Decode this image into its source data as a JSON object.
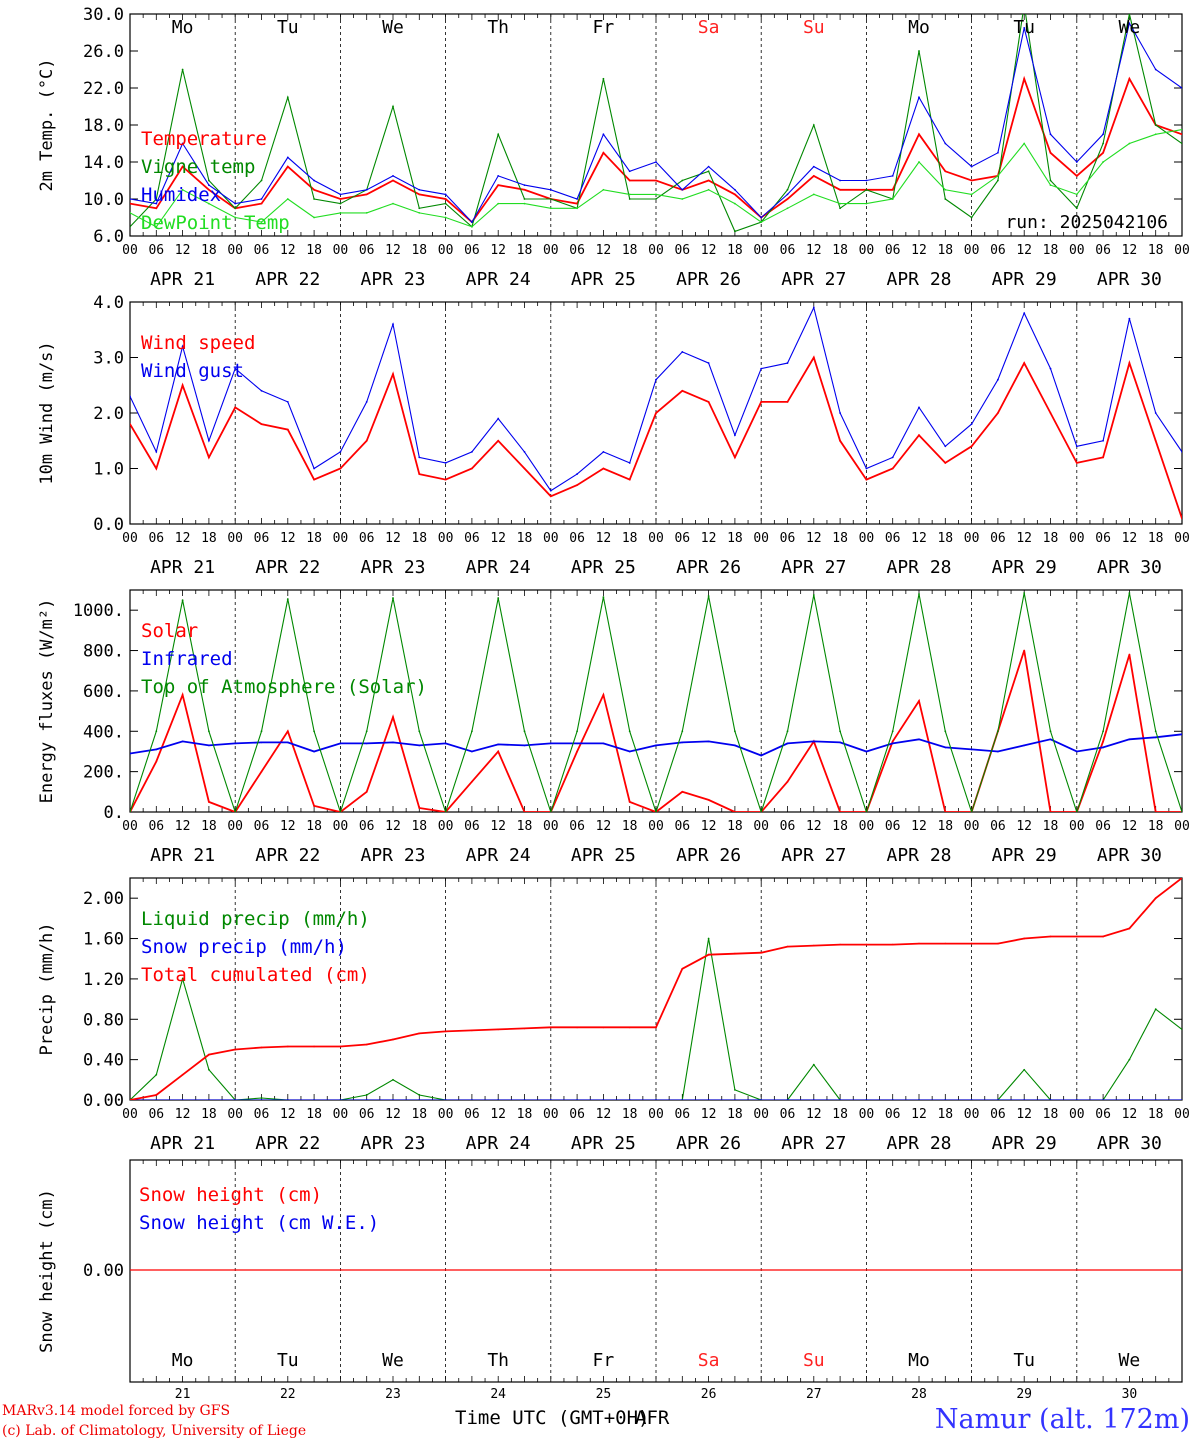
{
  "colors": {
    "red": "#ff0000",
    "green": "#008800",
    "lightgreen": "#22dd22",
    "blue": "#0000ee",
    "weekend": "#ff2222",
    "title": "#3333ff"
  },
  "days": [
    {
      "abbr": "Mo",
      "date": "APR 21",
      "num": "21",
      "weekend": false
    },
    {
      "abbr": "Tu",
      "date": "APR 22",
      "num": "22",
      "weekend": false
    },
    {
      "abbr": "We",
      "date": "APR 23",
      "num": "23",
      "weekend": false
    },
    {
      "abbr": "Th",
      "date": "APR 24",
      "num": "24",
      "weekend": false
    },
    {
      "abbr": "Fr",
      "date": "APR 25",
      "num": "25",
      "weekend": false
    },
    {
      "abbr": "Sa",
      "date": "APR 26",
      "num": "26",
      "weekend": true
    },
    {
      "abbr": "Su",
      "date": "APR 27",
      "num": "27",
      "weekend": true
    },
    {
      "abbr": "Mo",
      "date": "APR 28",
      "num": "28",
      "weekend": false
    },
    {
      "abbr": "Tu",
      "date": "APR 29",
      "num": "29",
      "weekend": false
    },
    {
      "abbr": "We",
      "date": "APR 30",
      "num": "30",
      "weekend": false
    }
  ],
  "hour_labels": [
    "00",
    "06",
    "12",
    "18"
  ],
  "run_label": "run: 2025042106",
  "footer": {
    "credit_line1": "MARv3.14 model forced by GFS",
    "credit_line2": "(c) Lab. of Climatology, University of Liege",
    "xlabel": "Time UTC (GMT+0H)",
    "xlabel_overlap": "AFR",
    "station": "Namur (alt. 172m)"
  },
  "chart_data": [
    {
      "type": "line",
      "ylabel": "2m Temp. (°C)",
      "ylim": [
        6.0,
        30.0
      ],
      "yticks": [
        "6.0",
        "10.0",
        "14.0",
        "18.0",
        "22.0",
        "26.0",
        "30.0"
      ],
      "x_hours": [
        0,
        6,
        12,
        18,
        24,
        30,
        36,
        42,
        48,
        54,
        60,
        66,
        72,
        78,
        84,
        90,
        96,
        102,
        108,
        114,
        120,
        126,
        132,
        138,
        144,
        150,
        156,
        162,
        168,
        174,
        180,
        186,
        192,
        198,
        204,
        210,
        216,
        222,
        228,
        234,
        240
      ],
      "series": [
        {
          "name": "Temperature",
          "color": "red",
          "values": [
            9.5,
            9.0,
            13.5,
            11.0,
            9.0,
            9.5,
            13.5,
            11.0,
            10.0,
            10.5,
            12.0,
            10.5,
            10.0,
            7.5,
            11.5,
            11.0,
            10.0,
            9.5,
            15.0,
            12.0,
            12.0,
            11.0,
            12.0,
            10.5,
            8.0,
            10.0,
            12.5,
            11.0,
            11.0,
            11.0,
            17.0,
            13.0,
            12.0,
            12.5,
            23.0,
            15.0,
            12.5,
            15.0,
            23.0,
            18.0,
            17.0
          ]
        },
        {
          "name": "Vigne temp",
          "color": "green",
          "values": [
            7.0,
            10.0,
            24.0,
            12.0,
            9.0,
            12.0,
            21.0,
            10.0,
            9.5,
            11.0,
            20.0,
            9.0,
            9.5,
            7.0,
            17.0,
            10.0,
            10.0,
            9.0,
            23.0,
            10.0,
            10.0,
            12.0,
            13.0,
            6.5,
            7.5,
            11.0,
            18.0,
            9.0,
            11.0,
            10.0,
            26.0,
            10.0,
            8.0,
            12.0,
            31.0,
            12.0,
            9.0,
            16.0,
            30.0,
            18.0,
            16.0
          ]
        },
        {
          "name": "Humidex",
          "color": "blue",
          "values": [
            10.0,
            9.5,
            16.0,
            11.5,
            9.5,
            10.0,
            14.5,
            12.0,
            10.5,
            11.0,
            12.5,
            11.0,
            10.5,
            7.5,
            12.5,
            11.5,
            11.0,
            10.0,
            17.0,
            13.0,
            14.0,
            11.0,
            13.5,
            11.0,
            8.0,
            10.5,
            13.5,
            12.0,
            12.0,
            12.5,
            21.0,
            16.0,
            13.5,
            15.0,
            28.5,
            17.0,
            14.0,
            17.0,
            29.0,
            24.0,
            22.0
          ]
        },
        {
          "name": "DewPoint Temp",
          "color": "lightgreen",
          "values": [
            8.5,
            7.0,
            11.0,
            9.5,
            8.0,
            7.5,
            10.0,
            8.0,
            8.5,
            8.5,
            9.5,
            8.5,
            8.0,
            7.0,
            9.5,
            9.5,
            9.0,
            9.0,
            11.0,
            10.5,
            10.5,
            10.0,
            11.0,
            9.5,
            7.5,
            9.0,
            10.5,
            9.5,
            9.5,
            10.0,
            14.0,
            11.0,
            10.5,
            12.5,
            16.0,
            11.5,
            10.5,
            14.0,
            16.0,
            17.0,
            17.5
          ]
        }
      ]
    },
    {
      "type": "line",
      "ylabel": "10m Wind (m/s)",
      "ylim": [
        0.0,
        4.0
      ],
      "yticks": [
        "0.0",
        "1.0",
        "2.0",
        "3.0",
        "4.0"
      ],
      "x_hours": [
        0,
        6,
        12,
        18,
        24,
        30,
        36,
        42,
        48,
        54,
        60,
        66,
        72,
        78,
        84,
        90,
        96,
        102,
        108,
        114,
        120,
        126,
        132,
        138,
        144,
        150,
        156,
        162,
        168,
        174,
        180,
        186,
        192,
        198,
        204,
        210,
        216,
        222,
        228,
        234,
        240
      ],
      "series": [
        {
          "name": "Wind speed",
          "color": "red",
          "values": [
            1.8,
            1.0,
            2.5,
            1.2,
            2.1,
            1.8,
            1.7,
            0.8,
            1.0,
            1.5,
            2.7,
            0.9,
            0.8,
            1.0,
            1.5,
            1.0,
            0.5,
            0.7,
            1.0,
            0.8,
            2.0,
            2.4,
            2.2,
            1.2,
            2.2,
            2.2,
            3.0,
            1.5,
            0.8,
            1.0,
            1.6,
            1.1,
            1.4,
            2.0,
            2.9,
            2.0,
            1.1,
            1.2,
            2.9,
            1.5,
            0.1
          ]
        },
        {
          "name": "Wind gust",
          "color": "blue",
          "values": [
            2.3,
            1.3,
            3.2,
            1.5,
            2.8,
            2.4,
            2.2,
            1.0,
            1.3,
            2.2,
            3.6,
            1.2,
            1.1,
            1.3,
            1.9,
            1.3,
            0.6,
            0.9,
            1.3,
            1.1,
            2.6,
            3.1,
            2.9,
            1.6,
            2.8,
            2.9,
            3.9,
            2.0,
            1.0,
            1.2,
            2.1,
            1.4,
            1.8,
            2.6,
            3.8,
            2.8,
            1.4,
            1.5,
            3.7,
            2.0,
            1.3
          ]
        }
      ]
    },
    {
      "type": "line",
      "ylabel": "Energy fluxes (W/m²)",
      "ylim": [
        0,
        1100
      ],
      "yticks": [
        "0.",
        "200.",
        "400.",
        "600.",
        "800.",
        "1000."
      ],
      "x_hours": [
        0,
        6,
        12,
        18,
        24,
        30,
        36,
        42,
        48,
        54,
        60,
        66,
        72,
        78,
        84,
        90,
        96,
        102,
        108,
        114,
        120,
        126,
        132,
        138,
        144,
        150,
        156,
        162,
        168,
        174,
        180,
        186,
        192,
        198,
        204,
        210,
        216,
        222,
        228,
        234,
        240
      ],
      "series": [
        {
          "name": "Solar",
          "color": "red",
          "values": [
            0,
            250,
            580,
            50,
            0,
            200,
            400,
            30,
            0,
            100,
            470,
            20,
            0,
            150,
            300,
            0,
            0,
            300,
            580,
            50,
            0,
            100,
            60,
            0,
            0,
            150,
            350,
            0,
            0,
            350,
            550,
            0,
            0,
            400,
            800,
            0,
            0,
            350,
            780,
            0,
            0
          ]
        },
        {
          "name": "Infrared",
          "color": "blue",
          "values": [
            290,
            310,
            350,
            330,
            340,
            345,
            345,
            300,
            340,
            340,
            345,
            330,
            340,
            300,
            335,
            330,
            340,
            340,
            340,
            300,
            330,
            345,
            350,
            330,
            280,
            340,
            350,
            345,
            300,
            340,
            360,
            320,
            310,
            300,
            330,
            360,
            300,
            320,
            360,
            370,
            385
          ]
        },
        {
          "name": "Top of Atmosphere (Solar)",
          "color": "green",
          "values": [
            0,
            400,
            1050,
            400,
            0,
            400,
            1055,
            400,
            0,
            400,
            1060,
            400,
            0,
            400,
            1060,
            400,
            0,
            400,
            1065,
            400,
            0,
            400,
            1070,
            400,
            0,
            400,
            1075,
            400,
            0,
            400,
            1080,
            400,
            0,
            400,
            1085,
            400,
            0,
            400,
            1085,
            400,
            0
          ]
        }
      ]
    },
    {
      "type": "line",
      "ylabel": "Precip (mm/h)",
      "ylim": [
        0.0,
        2.2
      ],
      "yticks": [
        "0.00",
        "0.40",
        "0.80",
        "1.20",
        "1.60",
        "2.00"
      ],
      "x_hours": [
        0,
        6,
        12,
        18,
        24,
        30,
        36,
        42,
        48,
        54,
        60,
        66,
        72,
        78,
        84,
        90,
        96,
        102,
        108,
        114,
        120,
        126,
        132,
        138,
        144,
        150,
        156,
        162,
        168,
        174,
        180,
        186,
        192,
        198,
        204,
        210,
        216,
        222,
        228,
        234,
        240
      ],
      "series": [
        {
          "name": "Liquid precip (mm/h)",
          "color": "green",
          "values": [
            0,
            0.25,
            1.2,
            0.3,
            0,
            0.02,
            0,
            0,
            0,
            0.05,
            0.2,
            0.05,
            0,
            0,
            0,
            0,
            0,
            0,
            0,
            0,
            0,
            0,
            1.6,
            0.1,
            0,
            0,
            0.35,
            0,
            0,
            0,
            0,
            0,
            0,
            0,
            0.3,
            0,
            0,
            0,
            0.4,
            0.9,
            0.7
          ]
        },
        {
          "name": "Snow precip (mm/h)",
          "color": "blue",
          "values": [
            0,
            0,
            0,
            0,
            0,
            0,
            0,
            0,
            0,
            0,
            0,
            0,
            0,
            0,
            0,
            0,
            0,
            0,
            0,
            0,
            0,
            0,
            0,
            0,
            0,
            0,
            0,
            0,
            0,
            0,
            0,
            0,
            0,
            0,
            0,
            0,
            0,
            0,
            0,
            0,
            0
          ]
        },
        {
          "name": "Total cumulated (cm)",
          "color": "red",
          "values": [
            0,
            0.05,
            0.25,
            0.45,
            0.5,
            0.52,
            0.53,
            0.53,
            0.53,
            0.55,
            0.6,
            0.66,
            0.68,
            0.69,
            0.7,
            0.71,
            0.72,
            0.72,
            0.72,
            0.72,
            0.72,
            1.3,
            1.44,
            1.45,
            1.46,
            1.52,
            1.53,
            1.54,
            1.54,
            1.54,
            1.55,
            1.55,
            1.55,
            1.55,
            1.6,
            1.62,
            1.62,
            1.62,
            1.7,
            2.0,
            2.2
          ]
        }
      ]
    },
    {
      "type": "line",
      "ylabel": "Snow height (cm)",
      "yticks": [
        "0.00"
      ],
      "series": [
        {
          "name": "Snow height (cm)",
          "color": "red",
          "values": [
            0,
            0
          ]
        },
        {
          "name": "Snow height (cm W.E.)",
          "color": "blue",
          "values": []
        }
      ]
    }
  ]
}
